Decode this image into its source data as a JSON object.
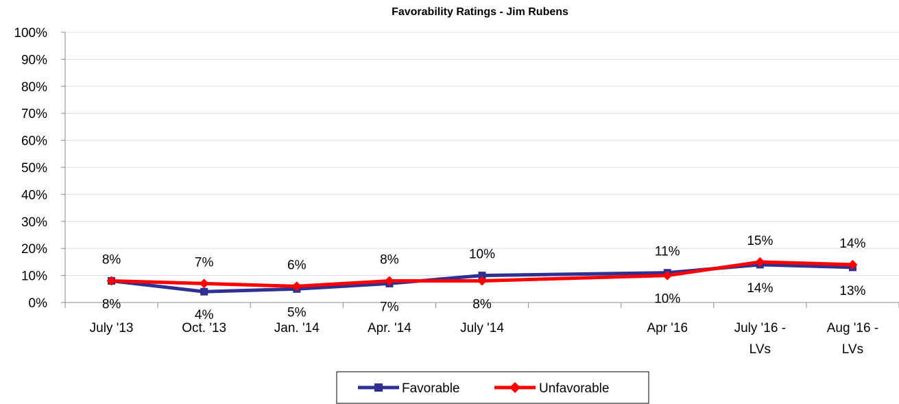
{
  "chart_data": {
    "type": "line",
    "title": "Favorability Ratings - Jim Rubens",
    "xlabel": "",
    "ylabel": "",
    "ylim": [
      0,
      100
    ],
    "y_ticks": [
      "0%",
      "10%",
      "20%",
      "30%",
      "40%",
      "50%",
      "60%",
      "70%",
      "80%",
      "90%",
      "100%"
    ],
    "categories": [
      [
        "July '13"
      ],
      [
        "Oct. '13"
      ],
      [
        "Jan. '14"
      ],
      [
        "Apr. '14"
      ],
      [
        "July '14"
      ],
      [
        ""
      ],
      [
        "Apr '16"
      ],
      [
        "July '16 -",
        "LVs"
      ],
      [
        "Aug '16 -",
        "LVs"
      ]
    ],
    "series": [
      {
        "name": "Favorable",
        "color": "#2E3192",
        "marker": "square",
        "values": [
          8,
          4,
          5,
          7,
          10,
          null,
          11,
          14,
          13
        ],
        "labels": [
          "8%",
          "4%",
          "5%",
          "7%",
          "10%",
          "",
          "11%",
          "14%",
          "13%"
        ]
      },
      {
        "name": "Unfavorable",
        "color": "#FF0000",
        "marker": "diamond",
        "values": [
          8,
          7,
          6,
          8,
          8,
          null,
          10,
          15,
          14
        ],
        "labels": [
          "8%",
          "7%",
          "6%",
          "8%",
          "8%",
          "",
          "10%",
          "15%",
          "14%"
        ]
      }
    ],
    "grid": true,
    "gridline_color": "#D9DCEF",
    "legend_position": "bottom"
  }
}
